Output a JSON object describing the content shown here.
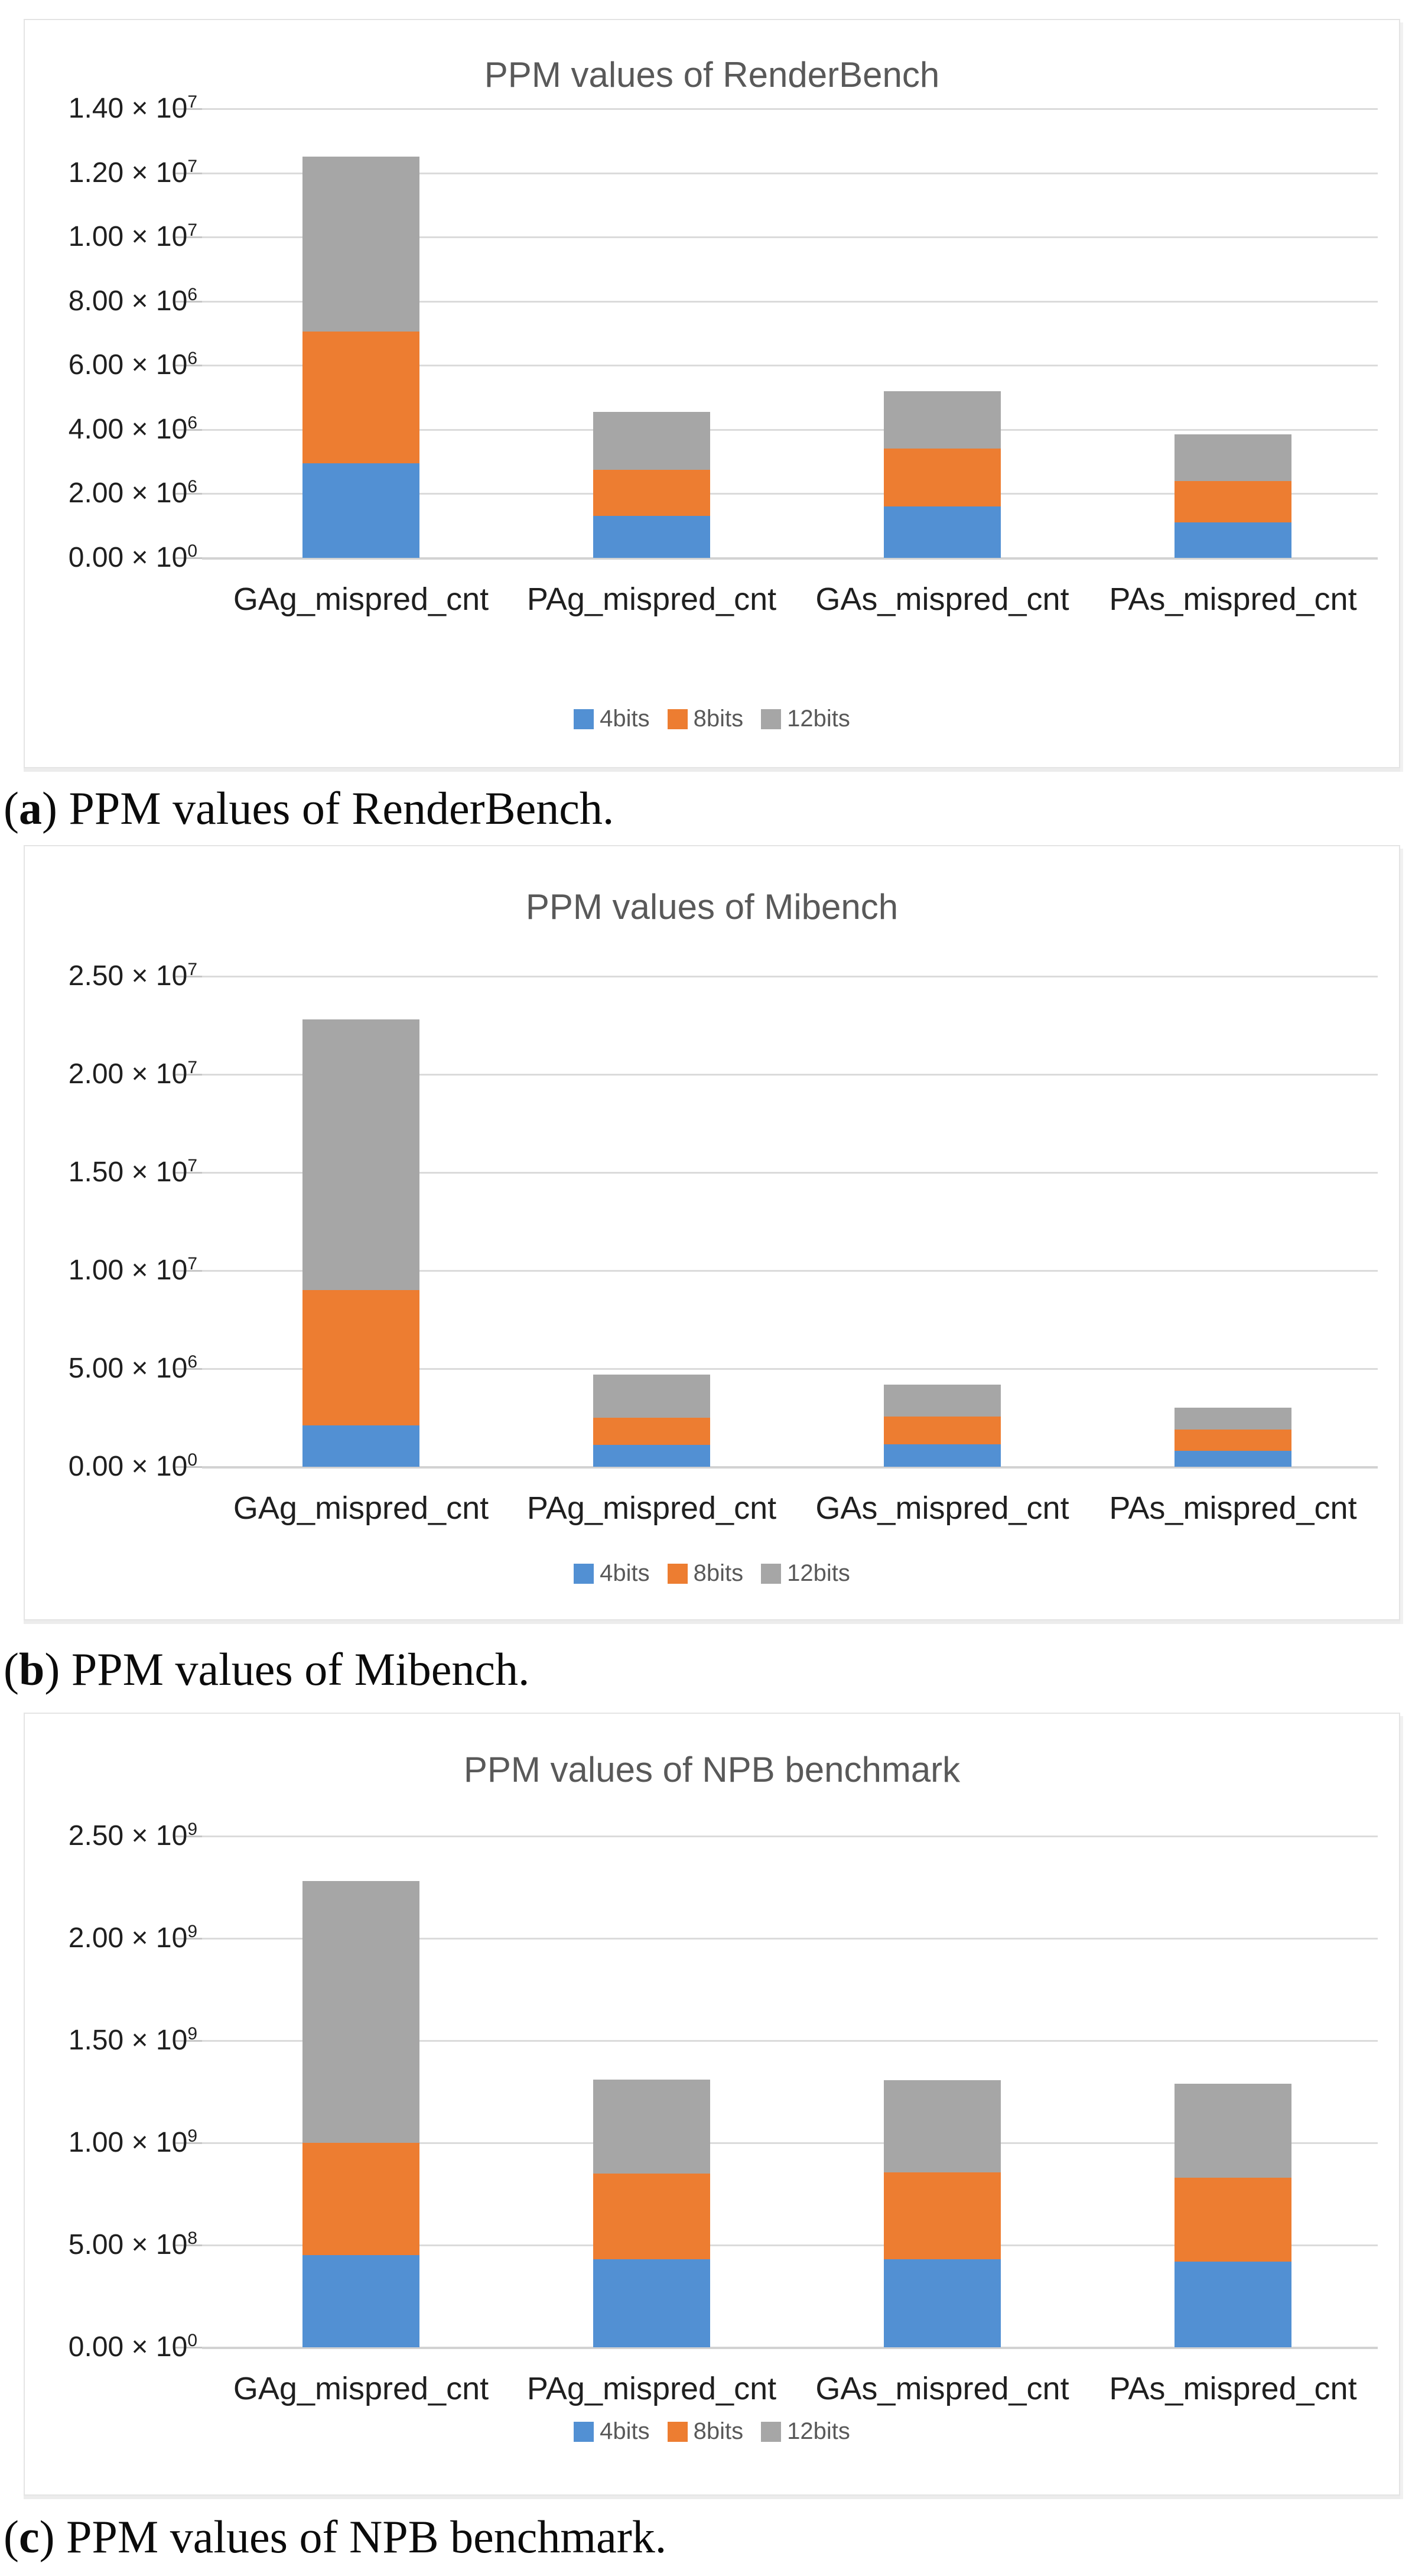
{
  "figure": {
    "background": "#ffffff",
    "panels": [
      {
        "caption_letter": "a",
        "caption_text": " PPM values of RenderBench."
      },
      {
        "caption_letter": "b",
        "caption_text": " PPM values of Mibench."
      },
      {
        "caption_letter": "c",
        "caption_text": " PPM values of NPB benchmark."
      }
    ]
  },
  "format": {
    "caption_open": "(",
    "caption_close": ")",
    "times_symbol": "×",
    "exponent_base": "10"
  },
  "colors": {
    "series_4bits": "#5290D3",
    "series_8bits": "#ED7D31",
    "series_12bits": "#A6A6A6",
    "chart_title": "#595959",
    "tick_label": "#1F1F1F",
    "legend_text": "#595959",
    "gridline": "#DBDBDB",
    "baseline": "#D2D2D2",
    "panel_border": "#E4E4E4"
  },
  "chart_data": [
    {
      "type": "bar",
      "stacked": true,
      "grid": true,
      "legend_position": "bottom",
      "title": "PPM values of RenderBench",
      "xlabel": "",
      "ylabel": "",
      "categories": [
        "GAg_mispred_cnt",
        "PAg_mispred_cnt",
        "GAs_mispred_cnt",
        "PAs_mispred_cnt"
      ],
      "series": [
        {
          "name": "4bits",
          "color": "#5290D3",
          "values": [
            2950000,
            1300000,
            1600000,
            1100000
          ]
        },
        {
          "name": "8bits",
          "color": "#ED7D31",
          "values": [
            4100000,
            1450000,
            1800000,
            1300000
          ]
        },
        {
          "name": "12bits",
          "color": "#A6A6A6",
          "values": [
            5450000,
            1800000,
            1800000,
            1450000
          ]
        }
      ],
      "stack_totals": [
        12500000,
        4550000,
        5200000,
        3850000
      ],
      "ylim": [
        0,
        14000000
      ],
      "yticks": [
        {
          "value": 0,
          "m": "0.00",
          "e": "0"
        },
        {
          "value": 2000000,
          "m": "2.00",
          "e": "6"
        },
        {
          "value": 4000000,
          "m": "4.00",
          "e": "6"
        },
        {
          "value": 6000000,
          "m": "6.00",
          "e": "6"
        },
        {
          "value": 8000000,
          "m": "8.00",
          "e": "6"
        },
        {
          "value": 10000000,
          "m": "1.00",
          "e": "7"
        },
        {
          "value": 12000000,
          "m": "1.20",
          "e": "7"
        },
        {
          "value": 14000000,
          "m": "1.40",
          "e": "7"
        }
      ]
    },
    {
      "type": "bar",
      "stacked": true,
      "grid": true,
      "legend_position": "bottom",
      "title": "PPM values of Mibench",
      "xlabel": "",
      "ylabel": "",
      "categories": [
        "GAg_mispred_cnt",
        "PAg_mispred_cnt",
        "GAs_mispred_cnt",
        "PAs_mispred_cnt"
      ],
      "series": [
        {
          "name": "4bits",
          "color": "#5290D3",
          "values": [
            2100000,
            1100000,
            1150000,
            800000
          ]
        },
        {
          "name": "8bits",
          "color": "#ED7D31",
          "values": [
            6900000,
            1400000,
            1400000,
            1100000
          ]
        },
        {
          "name": "12bits",
          "color": "#A6A6A6",
          "values": [
            13800000,
            2200000,
            1650000,
            1100000
          ]
        }
      ],
      "stack_totals": [
        22800000,
        4700000,
        4200000,
        3000000
      ],
      "ylim": [
        0,
        25000000
      ],
      "yticks": [
        {
          "value": 0,
          "m": "0.00",
          "e": "0"
        },
        {
          "value": 5000000,
          "m": "5.00",
          "e": "6"
        },
        {
          "value": 10000000,
          "m": "1.00",
          "e": "7"
        },
        {
          "value": 15000000,
          "m": "1.50",
          "e": "7"
        },
        {
          "value": 20000000,
          "m": "2.00",
          "e": "7"
        },
        {
          "value": 25000000,
          "m": "2.50",
          "e": "7"
        }
      ]
    },
    {
      "type": "bar",
      "stacked": true,
      "grid": true,
      "legend_position": "bottom",
      "title": "PPM values of NPB benchmark",
      "xlabel": "",
      "ylabel": "",
      "categories": [
        "GAg_mispred_cnt",
        "PAg_mispred_cnt",
        "GAs_mispred_cnt",
        "PAs_mispred_cnt"
      ],
      "series": [
        {
          "name": "4bits",
          "color": "#5290D3",
          "values": [
            450000000,
            430000000,
            430000000,
            420000000
          ]
        },
        {
          "name": "8bits",
          "color": "#ED7D31",
          "values": [
            550000000,
            420000000,
            425000000,
            410000000
          ]
        },
        {
          "name": "12bits",
          "color": "#A6A6A6",
          "values": [
            1280000000,
            460000000,
            450000000,
            460000000
          ]
        }
      ],
      "stack_totals": [
        2280000000,
        1310000000,
        1305000000,
        1290000000
      ],
      "ylim": [
        0,
        2500000000
      ],
      "yticks": [
        {
          "value": 0,
          "m": "0.00",
          "e": "0"
        },
        {
          "value": 500000000,
          "m": "5.00",
          "e": "8"
        },
        {
          "value": 1000000000,
          "m": "1.00",
          "e": "9"
        },
        {
          "value": 1500000000,
          "m": "1.50",
          "e": "9"
        },
        {
          "value": 2000000000,
          "m": "2.00",
          "e": "9"
        },
        {
          "value": 2500000000,
          "m": "2.50",
          "e": "9"
        }
      ]
    }
  ]
}
